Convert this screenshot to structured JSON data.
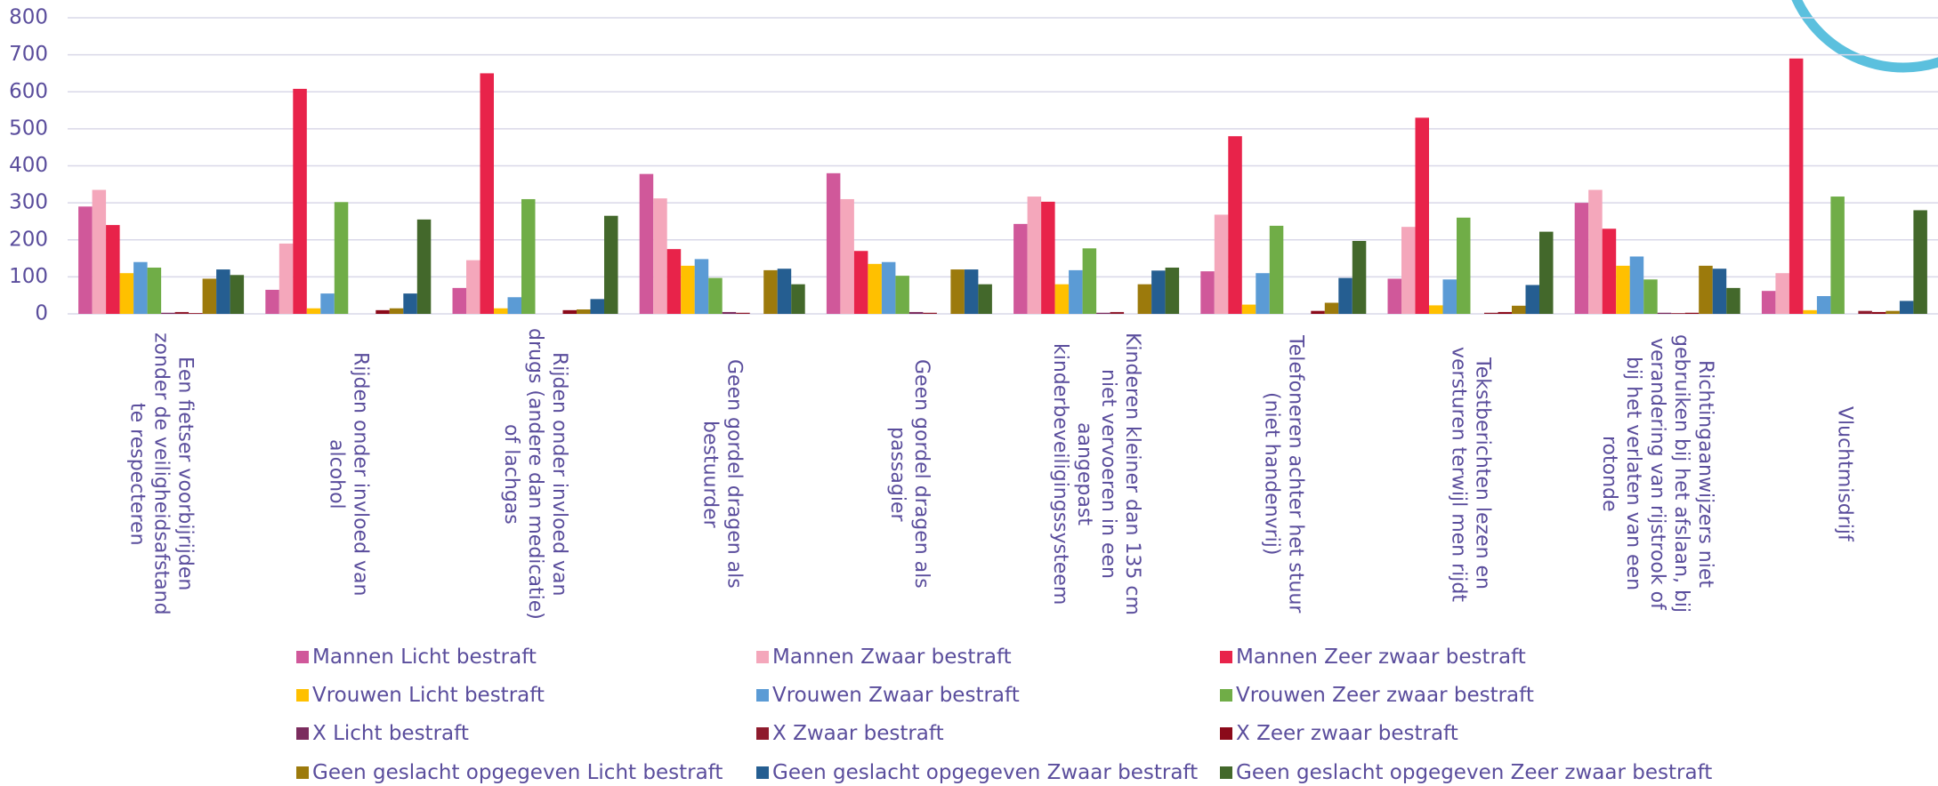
{
  "chart_data": {
    "type": "bar",
    "categories": [
      "Een fietser voorbijrijden zonder de veiligheidsafstand te respecteren",
      "Rijden onder invloed van alcohol",
      "Rijden onder invloed van drugs (andere dan medicatie) of lachgas",
      "Geen gordel dragen als bestuurder",
      "Geen gordel dragen als passagier",
      "Kinderen kleiner dan 135 cm niet vervoeren in een aangepast kinderbeveiligingssysteem",
      "Telefoneren achter het stuur (niet handenvrij)",
      "Tekstberichten lezen en versturen terwijl men rijdt",
      "Richtingaanwijzers niet gebruiken bij het afslaan, bij verandering van rijstrook of bij het verlaten van een rotonde",
      "Vluchtmisdrijf"
    ],
    "series": [
      {
        "name": "Mannen Licht bestraft",
        "color": "#d0589a",
        "values": [
          290,
          65,
          70,
          378,
          380,
          243,
          115,
          95,
          300,
          62
        ]
      },
      {
        "name": "Mannen Zwaar bestraft",
        "color": "#f4a7bb",
        "values": [
          335,
          190,
          145,
          312,
          310,
          317,
          268,
          235,
          335,
          110
        ]
      },
      {
        "name": "Mannen Zeer zwaar bestraft",
        "color": "#e8234a",
        "values": [
          240,
          608,
          650,
          175,
          170,
          303,
          480,
          530,
          230,
          690
        ]
      },
      {
        "name": "Vrouwen Licht bestraft",
        "color": "#ffc000",
        "values": [
          110,
          15,
          15,
          130,
          135,
          80,
          25,
          23,
          130,
          10
        ]
      },
      {
        "name": "Vrouwen Zwaar bestraft",
        "color": "#5b9bd5",
        "values": [
          140,
          55,
          45,
          148,
          140,
          118,
          110,
          93,
          155,
          48
        ]
      },
      {
        "name": "Vrouwen Zeer zwaar bestraft",
        "color": "#70ad47",
        "values": [
          125,
          302,
          310,
          97,
          103,
          177,
          238,
          260,
          93,
          317
        ]
      },
      {
        "name": "X Licht bestraft",
        "color": "#7b2c5e",
        "values": [
          3,
          0,
          0,
          5,
          5,
          3,
          0,
          0,
          3,
          0
        ]
      },
      {
        "name": "X Zwaar bestraft",
        "color": "#8e1b2d",
        "values": [
          5,
          0,
          0,
          3,
          3,
          5,
          0,
          3,
          2,
          8
        ]
      },
      {
        "name": "X Zeer zwaar bestraft",
        "color": "#8b0a1a",
        "values": [
          2,
          10,
          10,
          0,
          0,
          0,
          8,
          5,
          3,
          5
        ]
      },
      {
        "name": "Geen geslacht opgegeven Licht bestraft",
        "color": "#9c7a0c",
        "values": [
          95,
          15,
          12,
          118,
          120,
          80,
          30,
          22,
          130,
          8
        ]
      },
      {
        "name": "Geen geslacht opgegeven Zwaar bestraft",
        "color": "#255e91",
        "values": [
          120,
          55,
          40,
          122,
          120,
          117,
          97,
          78,
          122,
          35
        ]
      },
      {
        "name": "Geen geslacht opgegeven Zeer zwaar bestraft",
        "color": "#43682b",
        "values": [
          105,
          255,
          265,
          80,
          80,
          125,
          197,
          222,
          70,
          280
        ]
      }
    ],
    "ylim": [
      0,
      800
    ],
    "yticks": [
      0,
      100,
      200,
      300,
      400,
      500,
      600,
      700,
      800
    ],
    "grid": true
  }
}
